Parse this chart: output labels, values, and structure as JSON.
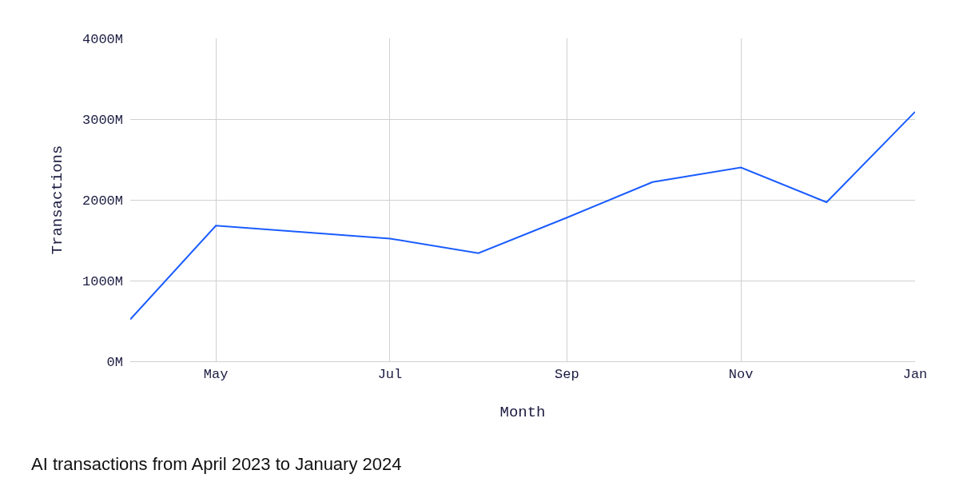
{
  "chart_data": {
    "type": "line",
    "xlabel": "Month",
    "ylabel": "Transactions",
    "x": [
      "2023-04",
      "2023-05",
      "2023-06",
      "2023-07",
      "2023-08",
      "2023-09",
      "2023-10",
      "2023-11",
      "2023-12",
      "2024-01"
    ],
    "series": [
      {
        "color": "#1a5cff",
        "values": [
          520,
          1680,
          1600,
          1520,
          1340,
          1780,
          2220,
          2400,
          1970,
          3090
        ]
      }
    ],
    "xlim": [
      "2023-04",
      "2024-01"
    ],
    "xticks": [
      {
        "value": "2023-05",
        "label": "May"
      },
      {
        "value": "2023-07",
        "label": "Jul"
      },
      {
        "value": "2023-09",
        "label": "Sep"
      },
      {
        "value": "2023-11",
        "label": "Nov"
      },
      {
        "value": "2024-01",
        "label": "Jan"
      }
    ],
    "ylim": [
      0,
      4000
    ],
    "yticks": [
      {
        "value": 0,
        "label": "0M"
      },
      {
        "value": 1000,
        "label": "1000M"
      },
      {
        "value": 2000,
        "label": "2000M"
      },
      {
        "value": 3000,
        "label": "3000M"
      },
      {
        "value": 4000,
        "label": "4000M"
      }
    ],
    "grid": true,
    "marker": "none",
    "line_style": "solid",
    "annotations": [
      "AI transactions from April 2023 to January 2024"
    ]
  }
}
